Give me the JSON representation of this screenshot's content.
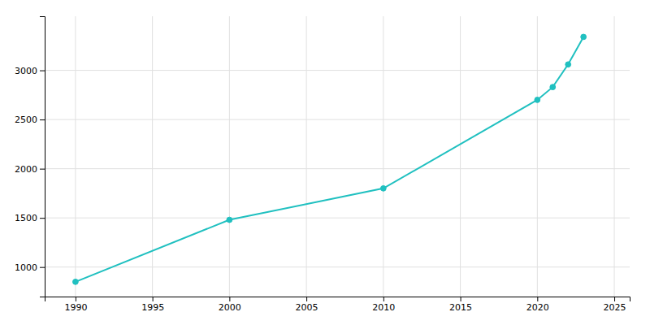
{
  "chart_data": {
    "type": "line",
    "x": [
      1990,
      2000,
      2010,
      2020,
      2021,
      2022,
      2023
    ],
    "values": [
      850,
      1480,
      1800,
      2700,
      2830,
      3060,
      3340
    ],
    "color": "#20c0c0",
    "marker": "circle",
    "xlim": [
      1988,
      2026
    ],
    "ylim": [
      700,
      3550
    ],
    "xticks": [
      1990,
      1995,
      2000,
      2005,
      2010,
      2015,
      2020,
      2025
    ],
    "yticks": [
      1000,
      1500,
      2000,
      2500,
      3000
    ],
    "grid": true
  }
}
